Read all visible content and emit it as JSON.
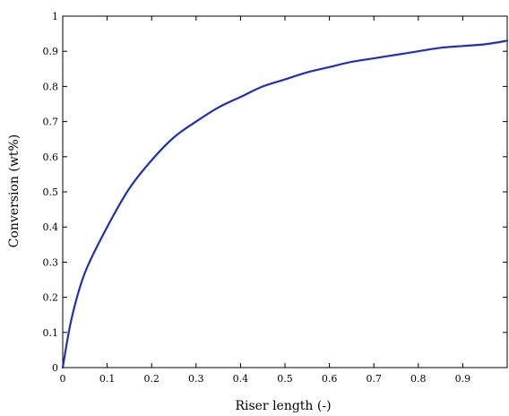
{
  "chart_data": {
    "type": "line",
    "title": "",
    "xlabel": "Riser length  (-)",
    "ylabel": "Conversion (wt%)",
    "xlim": [
      0,
      1
    ],
    "ylim": [
      0,
      1
    ],
    "grid": false,
    "x_ticks": [
      "0",
      "0.1",
      "0.2",
      "0.3",
      "0.4",
      "0.5",
      "0.6",
      "0.7",
      "0.8",
      "0.9"
    ],
    "y_ticks": [
      "0",
      "0.1",
      "0.2",
      "0.3",
      "0.4",
      "0.5",
      "0.6",
      "0.7",
      "0.8",
      "0.9",
      "1"
    ],
    "line_color": "#1f2fb8",
    "series": [
      {
        "x": [
          0,
          0.02,
          0.05,
          0.1,
          0.15,
          0.2,
          0.25,
          0.3,
          0.35,
          0.4,
          0.45,
          0.5,
          0.55,
          0.6,
          0.65,
          0.7,
          0.75,
          0.8,
          0.85,
          0.9,
          0.95,
          1.0
        ],
        "values": [
          0.0,
          0.14,
          0.27,
          0.4,
          0.51,
          0.59,
          0.655,
          0.7,
          0.74,
          0.77,
          0.8,
          0.82,
          0.84,
          0.855,
          0.87,
          0.88,
          0.89,
          0.9,
          0.91,
          0.915,
          0.92,
          0.93
        ]
      }
    ]
  }
}
